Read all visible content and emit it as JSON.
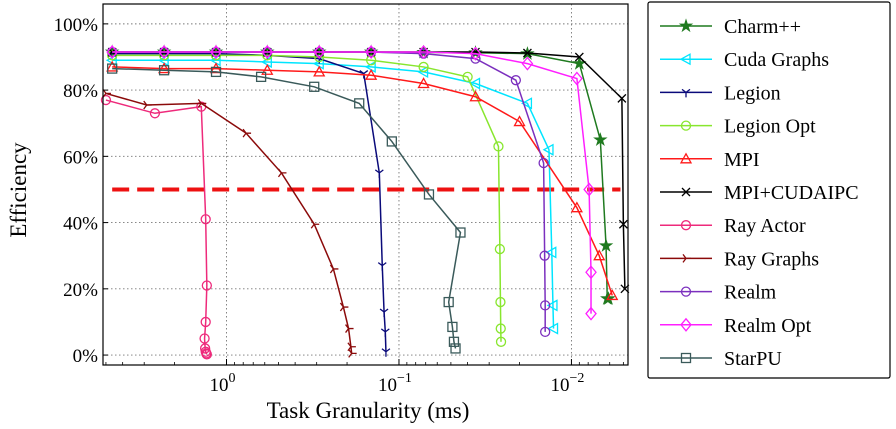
{
  "chart_data": {
    "type": "line",
    "title": "",
    "xlabel": "Task Granularity (ms)",
    "ylabel": "Efficiency",
    "x_scale": "log",
    "x_reversed": true,
    "xlim": [
      5.2,
      0.0047
    ],
    "ylim": [
      -3,
      106
    ],
    "grid": true,
    "legend_location": "outside-right",
    "xticks": [
      {
        "value": 1,
        "label": "10",
        "exp": "0"
      },
      {
        "value": 0.1,
        "label": "10",
        "exp": "−1"
      },
      {
        "value": 0.01,
        "label": "10",
        "exp": "−2"
      }
    ],
    "yticks": [
      {
        "value": 0,
        "label": "0%"
      },
      {
        "value": 20,
        "label": "20%"
      },
      {
        "value": 40,
        "label": "40%"
      },
      {
        "value": 60,
        "label": "60%"
      },
      {
        "value": 80,
        "label": "80%"
      },
      {
        "value": 100,
        "label": "100%"
      }
    ],
    "reference_line": {
      "y": 50,
      "color": "#ee1111",
      "style": "dashed"
    },
    "series": [
      {
        "name": "Charm++",
        "color": "#1f7a1f",
        "marker": "star",
        "x": [
          4.6,
          2.3,
          1.15,
          0.58,
          0.29,
          0.145,
          0.072,
          0.036,
          0.018,
          0.009,
          0.0068,
          0.0063,
          0.0062,
          0.0061
        ],
        "y": [
          91.5,
          91.5,
          91.5,
          91.5,
          91.5,
          91.5,
          91.4,
          91.3,
          91,
          88,
          65,
          33,
          17,
          17
        ]
      },
      {
        "name": "Cuda Graphs",
        "color": "#00e5ff",
        "marker": "triangle-left",
        "x": [
          4.6,
          2.3,
          1.15,
          0.58,
          0.29,
          0.145,
          0.072,
          0.036,
          0.018,
          0.0135,
          0.013,
          0.0128,
          0.0127
        ],
        "y": [
          89,
          89,
          89,
          88.5,
          88,
          87,
          85.5,
          82,
          76,
          62,
          31,
          15,
          8
        ]
      },
      {
        "name": "Legion",
        "color": "#0a0a7a",
        "marker": "tri-down",
        "x": [
          4.6,
          2.3,
          1.15,
          0.58,
          0.29,
          0.16,
          0.13,
          0.125,
          0.122,
          0.12,
          0.119
        ],
        "y": [
          91,
          91,
          91,
          90.5,
          89.5,
          85,
          55,
          27,
          13,
          7,
          1
        ]
      },
      {
        "name": "Legion Opt",
        "color": "#88e62e",
        "marker": "circle",
        "x": [
          4.6,
          2.3,
          1.15,
          0.58,
          0.29,
          0.145,
          0.072,
          0.04,
          0.0265,
          0.026,
          0.0258,
          0.0257,
          0.0256
        ],
        "y": [
          90.5,
          90.5,
          90.5,
          90.5,
          90,
          89,
          87,
          84,
          63,
          32,
          16,
          8,
          4
        ]
      },
      {
        "name": "MPI",
        "color": "#ff1a1a",
        "marker": "triangle-up",
        "x": [
          4.6,
          2.3,
          1.15,
          0.58,
          0.29,
          0.145,
          0.072,
          0.036,
          0.02,
          0.0093,
          0.0069,
          0.0058
        ],
        "y": [
          87,
          86.5,
          86.5,
          86,
          85.5,
          84.5,
          82,
          78,
          70.5,
          44.5,
          30,
          18
        ]
      },
      {
        "name": "MPI+CUDAIPC",
        "color": "#000000",
        "marker": "x",
        "x": [
          4.6,
          2.3,
          1.15,
          0.58,
          0.29,
          0.145,
          0.072,
          0.036,
          0.018,
          0.009,
          0.0051,
          0.005,
          0.0049
        ],
        "y": [
          91.5,
          91.5,
          91.5,
          91.5,
          91.5,
          91.5,
          91.5,
          91.5,
          91.2,
          90,
          77.5,
          39.5,
          20
        ]
      },
      {
        "name": "Ray Actor",
        "color": "#ee2a7b",
        "marker": "circle",
        "x": [
          5.0,
          2.6,
          1.4,
          1.32,
          1.3,
          1.32,
          1.34,
          1.33,
          1.32,
          1.31,
          1.3
        ],
        "y": [
          77,
          73,
          75,
          41,
          21,
          10,
          5,
          2,
          1,
          0.5,
          0.2
        ]
      },
      {
        "name": "Ray Graphs",
        "color": "#8b0a0a",
        "marker": "tri-right",
        "x": [
          5.0,
          2.9,
          1.4,
          0.77,
          0.48,
          0.31,
          0.24,
          0.21,
          0.196,
          0.19,
          0.188
        ],
        "y": [
          79,
          75.5,
          76,
          67,
          55,
          39.5,
          26,
          14.5,
          8,
          2.5,
          0.5
        ]
      },
      {
        "name": "Realm",
        "color": "#7b2fbe",
        "marker": "circle",
        "x": [
          4.6,
          2.3,
          1.15,
          0.58,
          0.29,
          0.145,
          0.072,
          0.036,
          0.021,
          0.0145,
          0.0143,
          0.0142,
          0.0142
        ],
        "y": [
          91.5,
          91.5,
          91.5,
          91.5,
          91.5,
          91.5,
          91,
          89.5,
          83,
          58,
          30,
          15,
          7
        ]
      },
      {
        "name": "Realm Opt",
        "color": "#ff1fff",
        "marker": "diamond",
        "x": [
          4.6,
          2.3,
          1.15,
          0.58,
          0.29,
          0.145,
          0.072,
          0.036,
          0.018,
          0.0093,
          0.0079,
          0.0077,
          0.0077
        ],
        "y": [
          91.5,
          91.5,
          91.5,
          91.5,
          91.5,
          91.5,
          91.5,
          91,
          88,
          83.5,
          50,
          25,
          12.5
        ]
      },
      {
        "name": "StarPU",
        "color": "#3a5a5a",
        "marker": "square",
        "x": [
          4.6,
          2.3,
          1.15,
          0.63,
          0.31,
          0.17,
          0.11,
          0.067,
          0.044,
          0.0515,
          0.049,
          0.048,
          0.047
        ],
        "y": [
          86.5,
          86,
          85.5,
          84,
          81,
          76,
          64.5,
          48.5,
          37,
          16,
          8.5,
          4,
          2
        ]
      }
    ]
  }
}
